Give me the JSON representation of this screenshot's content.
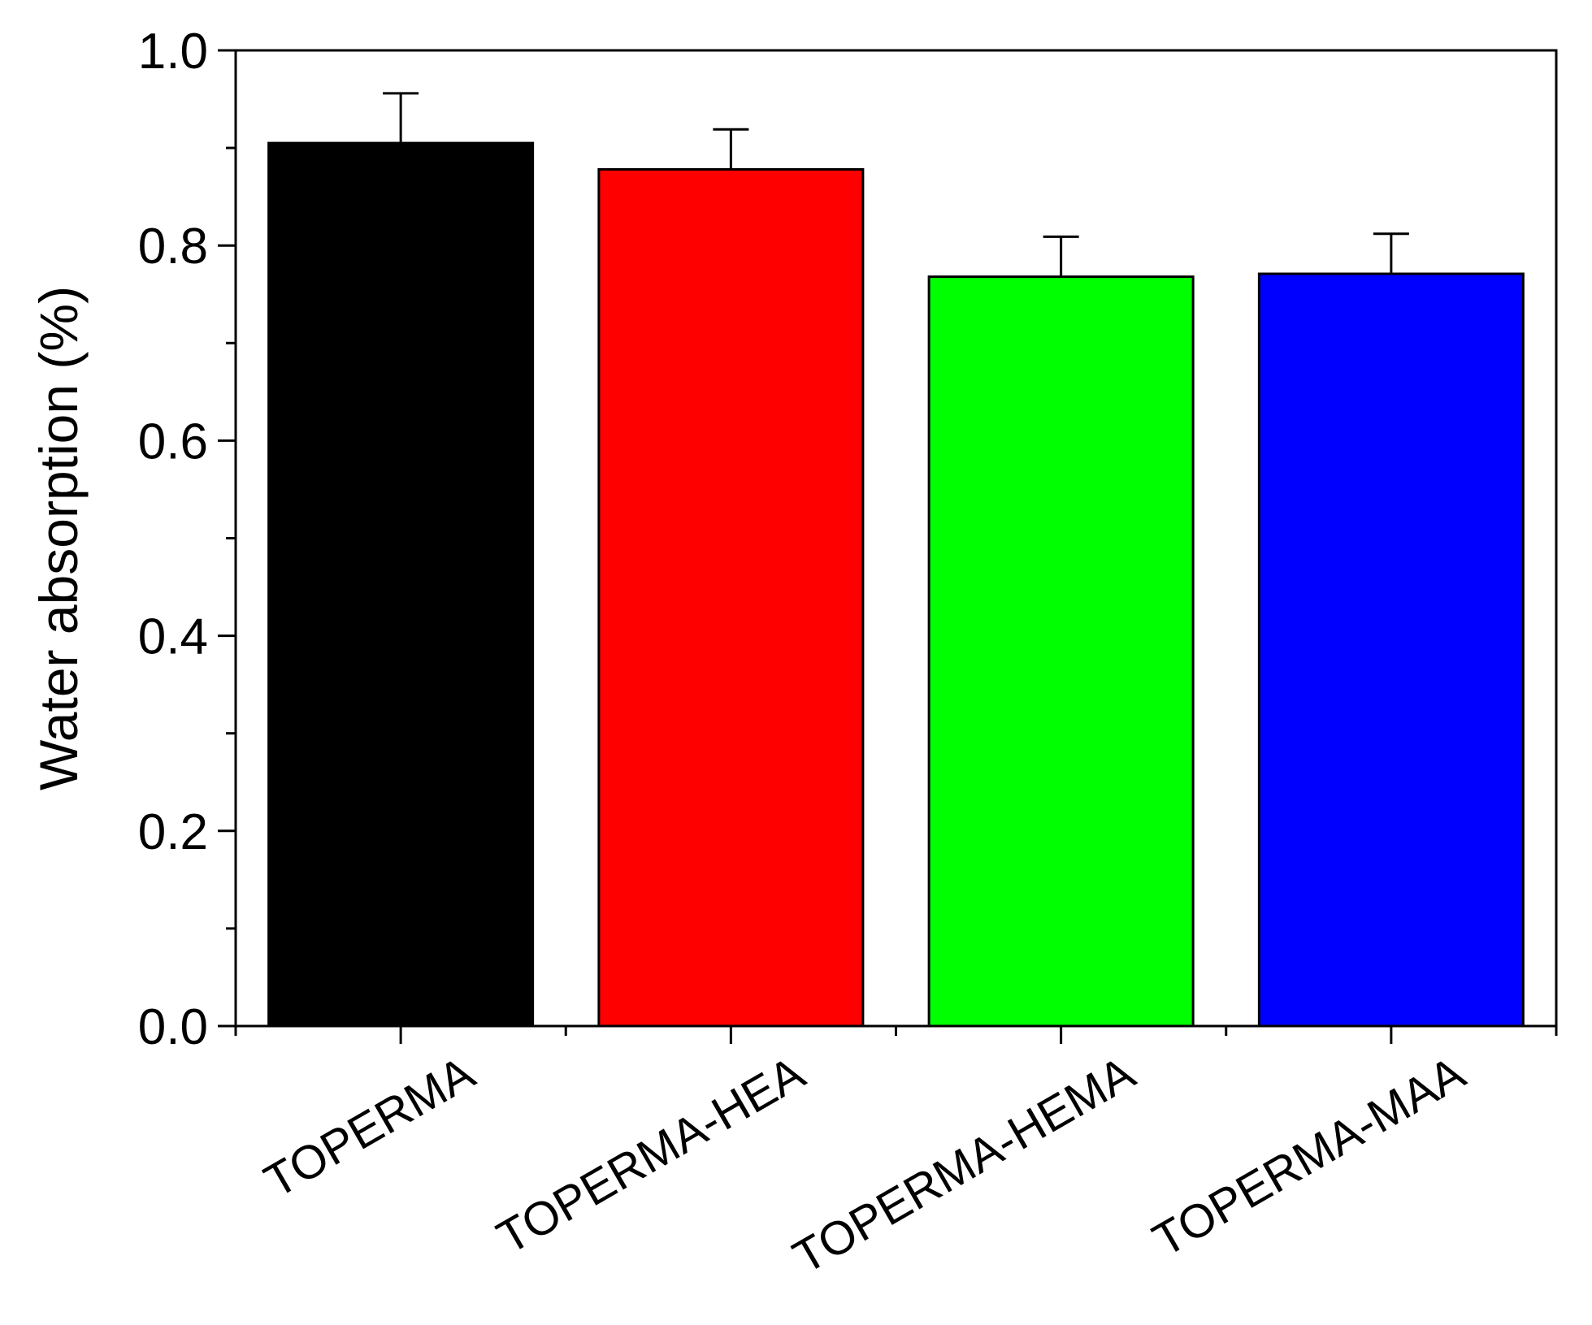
{
  "chart_data": {
    "type": "bar",
    "title": "",
    "xlabel": "",
    "ylabel": "Water absorption (%)",
    "ylim": [
      0,
      1.0
    ],
    "yticks": [
      "0.0",
      "0.2",
      "0.4",
      "0.6",
      "0.8",
      "1.0"
    ],
    "grid": false,
    "legend": "none",
    "categories": [
      "TOPERMA",
      "TOPERMA-HEA",
      "TOPERMA-HEMA",
      "TOPERMA-MAA"
    ],
    "values": [
      0.905,
      0.878,
      0.768,
      0.771
    ],
    "errors": [
      0.051,
      0.041,
      0.041,
      0.041
    ],
    "colors": [
      "#000000",
      "#ff0000",
      "#00ff00",
      "#0000ff"
    ]
  }
}
